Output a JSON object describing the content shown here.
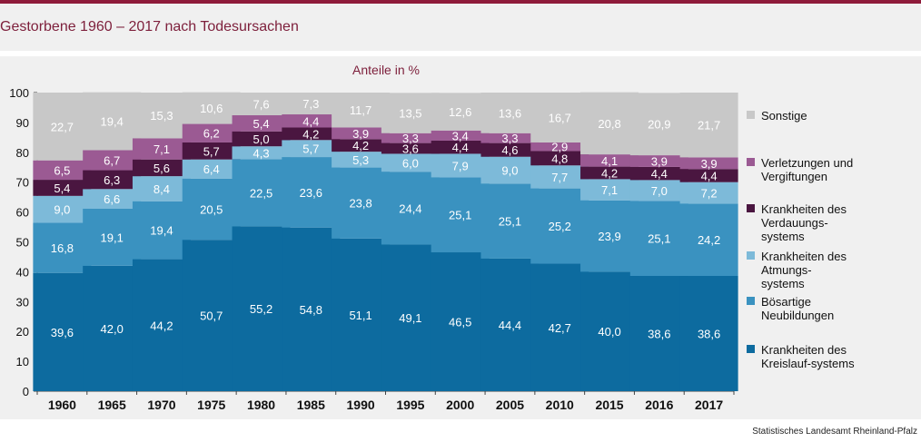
{
  "header": {
    "title": "Gestorbene 1960 – 2017 nach Todesursachen"
  },
  "chart_data": {
    "type": "bar",
    "stacked": true,
    "subtitle": "Anteile in %",
    "categories": [
      "1960",
      "1965",
      "1970",
      "1975",
      "1980",
      "1985",
      "1990",
      "1995",
      "2000",
      "2005",
      "2010",
      "2015",
      "2016",
      "2017"
    ],
    "series": [
      {
        "name": "Krankheiten des Kreislauf-systems",
        "legend_lines": [
          "Krankheiten des",
          "Kreislauf-systems"
        ],
        "color": "#0d6b9f",
        "values": [
          39.6,
          42.0,
          44.2,
          50.7,
          55.2,
          54.8,
          51.1,
          49.1,
          46.5,
          44.4,
          42.7,
          40.0,
          38.6,
          38.6
        ],
        "labels": [
          "39,6",
          "42,0",
          "44,2",
          "50,7",
          "55,2",
          "54,8",
          "51,1",
          "49,1",
          "46,5",
          "44,4",
          "42,7",
          "40,0",
          "38,6",
          "38,6"
        ]
      },
      {
        "name": "Bösartige Neubildungen",
        "legend_lines": [
          "Bösartige",
          "Neubildungen"
        ],
        "color": "#3a92c0",
        "values": [
          16.8,
          19.1,
          19.4,
          20.5,
          22.5,
          23.6,
          23.8,
          24.4,
          25.1,
          25.1,
          25.2,
          23.9,
          25.1,
          24.2
        ],
        "labels": [
          "16,8",
          "19,1",
          "19,4",
          "20,5",
          "22,5",
          "23,6",
          "23,8",
          "24,4",
          "25,1",
          "25,1",
          "25,2",
          "23,9",
          "25,1",
          "24,2"
        ]
      },
      {
        "name": "Krankheiten des Atmungs-systems",
        "legend_lines": [
          "Krankheiten des",
          "Atmungs-",
          "systems"
        ],
        "color": "#7dbad9",
        "values": [
          9.0,
          6.6,
          8.4,
          6.4,
          4.3,
          5.7,
          5.3,
          6.0,
          7.9,
          9.0,
          7.7,
          7.1,
          7.0,
          7.2
        ],
        "labels": [
          "9,0",
          "6,6",
          "8,4",
          "6,4",
          "4,3",
          "5,7",
          "5,3",
          "6,0",
          "7,9",
          "9,0",
          "7,7",
          "7,1",
          "7,0",
          "7,2"
        ]
      },
      {
        "name": "Krankheiten des Verdauungs-systems",
        "legend_lines": [
          "Krankheiten des",
          "Verdauungs-",
          "systems"
        ],
        "color": "#4a1640",
        "values": [
          5.4,
          6.3,
          5.6,
          5.7,
          5.0,
          4.2,
          4.2,
          3.6,
          4.4,
          4.6,
          4.8,
          4.2,
          4.4,
          4.4
        ],
        "labels": [
          "5,4",
          "6,3",
          "5,6",
          "5,7",
          "5,0",
          "4,2",
          "4,2",
          "3,6",
          "4,4",
          "4,6",
          "4,8",
          "4,2",
          "4,4",
          "4,4"
        ]
      },
      {
        "name": "Verletzungen und Vergiftungen",
        "legend_lines": [
          "Verletzungen und",
          "Vergiftungen"
        ],
        "color": "#9b5a93",
        "values": [
          6.5,
          6.7,
          7.1,
          6.2,
          5.4,
          4.4,
          3.9,
          3.3,
          3.4,
          3.3,
          2.9,
          4.1,
          3.9,
          3.9
        ],
        "labels": [
          "6,5",
          "6,7",
          "7,1",
          "6,2",
          "5,4",
          "4,4",
          "3,9",
          "3,3",
          "3,4",
          "3,3",
          "2,9",
          "4,1",
          "3,9",
          "3,9"
        ]
      },
      {
        "name": "Sonstige",
        "legend_lines": [
          "Sonstige"
        ],
        "color": "#c8c8c8",
        "values": [
          22.7,
          19.4,
          15.3,
          10.6,
          7.6,
          7.3,
          11.7,
          13.5,
          12.6,
          13.6,
          16.7,
          20.8,
          20.9,
          21.7
        ],
        "labels": [
          "22,7",
          "19,4",
          "15,3",
          "10,6",
          "7,6",
          "7,3",
          "11,7",
          "13,5",
          "12,6",
          "13,6",
          "16,7",
          "20,8",
          "20,9",
          "21,7"
        ]
      }
    ],
    "ylim": [
      0,
      100
    ],
    "yticks": [
      "0",
      "10",
      "20",
      "30",
      "40",
      "50",
      "60",
      "70",
      "80",
      "90",
      "100"
    ],
    "legend_position": "right",
    "grid": false
  },
  "source": "Statistisches Landesamt Rheinland-Pfalz"
}
